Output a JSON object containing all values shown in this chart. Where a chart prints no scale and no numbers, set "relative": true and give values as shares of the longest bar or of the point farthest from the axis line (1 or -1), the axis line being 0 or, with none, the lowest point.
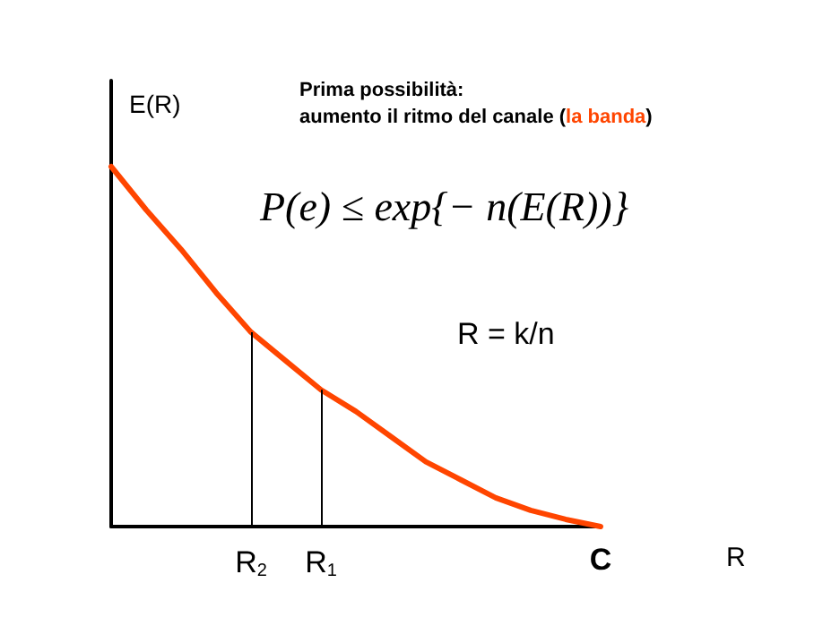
{
  "chart_data": {
    "type": "line",
    "relative": true,
    "title": "Prima possibilità:",
    "subtitle": "aumento il ritmo del canale (la banda)",
    "ylabel": "E(R)",
    "xlabel": "R",
    "categories": [
      null,
      null,
      null,
      null,
      "R$_{2}$",
      null,
      "R$_{1}$",
      null,
      null,
      null,
      null,
      null,
      null,
      null,
      "C"
    ],
    "series": [
      {
        "color": "#ff4500",
        "values": [
          1,
          0.88,
          0.77,
          0.65,
          0.54,
          0.46,
          0.38,
          0.32,
          0.25,
          0.18,
          0.13,
          0.08,
          0.045,
          0.02,
          0
        ]
      }
    ],
    "ref_lines": [
      {
        "axis": "x",
        "value": "R$_{2}$",
        "color": "#000000"
      },
      {
        "axis": "x",
        "value": "R$_{1}$",
        "color": "#000000"
      }
    ],
    "annotations": [
      "P(e) ≤ exp{− n(E(R))}",
      "R = k/n"
    ],
    "marker": "none",
    "line_style": "solid"
  }
}
